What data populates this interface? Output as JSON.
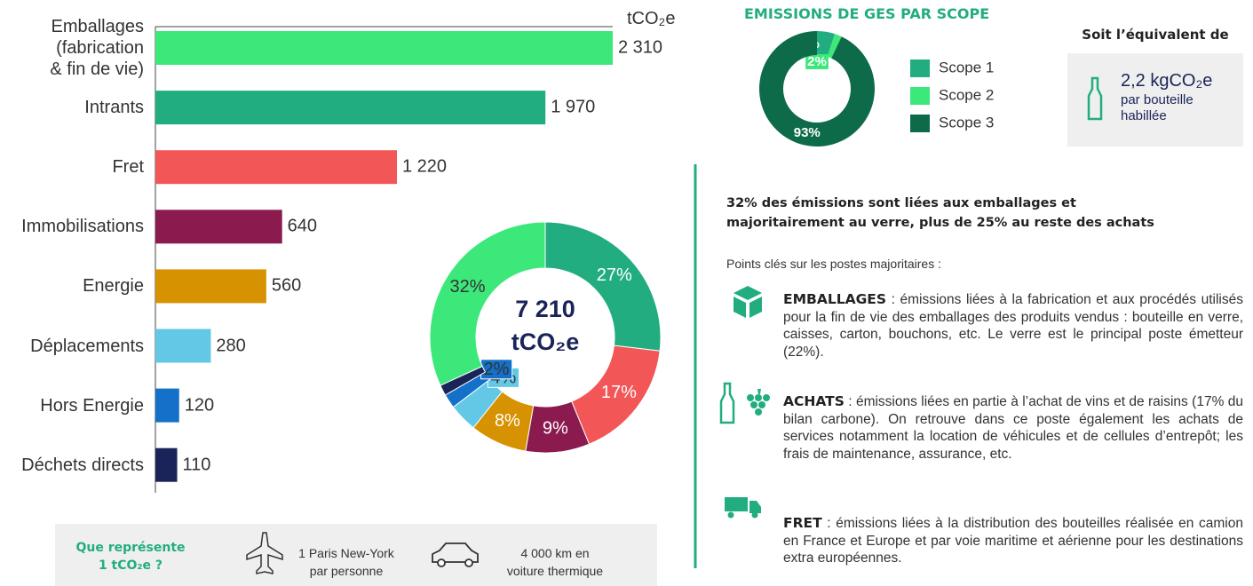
{
  "chart_data": [
    {
      "type": "hbar",
      "unit": "tCO₂e",
      "categories": [
        "Emballages\n(fabrication\n& fin de vie)",
        "Intrants",
        "Fret",
        "Immobilisations",
        "Energie",
        "Déplacements",
        "Hors Energie",
        "Déchets directs"
      ],
      "values": [
        2310,
        1970,
        1220,
        640,
        560,
        280,
        120,
        110
      ],
      "value_labels": [
        "2 310",
        "1 970",
        "1 220",
        "640",
        "560",
        "280",
        "120",
        "110"
      ],
      "colors": [
        "#3de87a",
        "#22ad80",
        "#f25656",
        "#8b1a4f",
        "#d69200",
        "#62c8e6",
        "#1470c8",
        "#1b2458"
      ]
    },
    {
      "type": "donut",
      "center_value": "7 210",
      "center_unit": "tCO₂e",
      "values": [
        27,
        17,
        9,
        8,
        4,
        2,
        1.5,
        32
      ],
      "value_labels": [
        "27%",
        "17%",
        "9%",
        "8%",
        "4%",
        "2%",
        null,
        "32%"
      ],
      "colors": [
        "#22ad80",
        "#f25656",
        "#8b1a4f",
        "#d69200",
        "#62c8e6",
        "#1470c8",
        "#1b2458",
        "#3de87a"
      ]
    },
    {
      "type": "donut",
      "title": "EMISSIONS DE GES PAR SCOPE",
      "series": [
        {
          "name": "Scope 1",
          "color": "#22ad80",
          "values": [
            5
          ]
        },
        {
          "name": "Scope 2",
          "color": "#3de87a",
          "values": [
            2
          ]
        },
        {
          "name": "Scope 3",
          "color": "#0e6b4a",
          "values": [
            93
          ]
        }
      ],
      "value_labels": [
        "5%",
        "2%",
        "93%"
      ]
    }
  ],
  "equivalent": {
    "title": "Soit l’équivalent de",
    "value": "2,2 kgCO₂e",
    "text": "par bouteille\nhabillée"
  },
  "comparison": {
    "title": "Que représente\n1 tCO₂e ?",
    "items": [
      "1 Paris New-York\npar personne",
      "4 000 km en\nvoiture thermique"
    ]
  },
  "summary": {
    "heading": "32% des émissions sont liées aux emballages et\nmajoritairement au verre, plus de 25% au reste des achats",
    "intro": "Points clés sur les postes majoritaires :",
    "items": [
      {
        "title": "EMBALLAGES",
        "text": " : émissions liées à la fabrication et aux procédés utilisés pour la fin de vie des emballages des produits vendus : bouteille en verre, caisses, carton, bouchons, etc. Le verre est le principal poste émetteur (22%)."
      },
      {
        "title": "ACHATS",
        "text": " : émissions liées en partie à l’achat de vins et de raisins (17% du bilan carbone). On retrouve dans ce poste également les achats de services notamment la location de véhicules et de cellules d’entrepôt; les frais de maintenance, assurance, etc."
      },
      {
        "title": "FRET",
        "text": " : émissions liées à la distribution des bouteilles réalisée en camion en France et Europe et par voie maritime et aérienne pour les destinations extra européennes."
      }
    ]
  }
}
